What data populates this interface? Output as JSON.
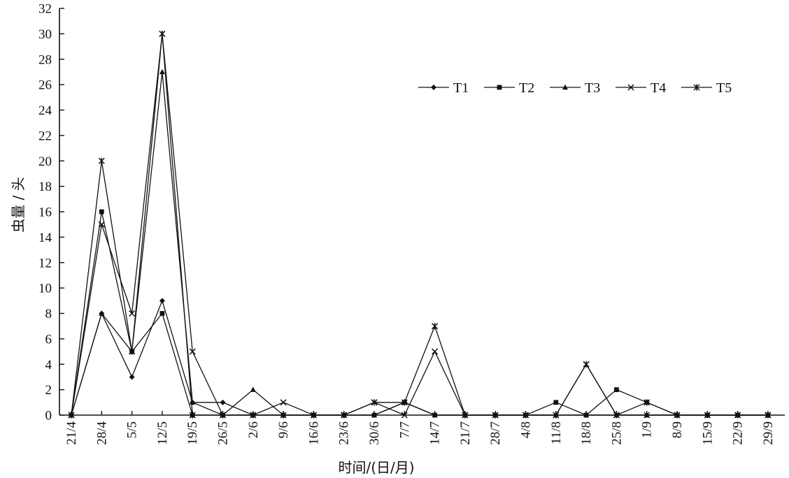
{
  "chart_data": {
    "type": "line",
    "title": "",
    "xlabel": "时间/(日/月)",
    "ylabel": "虫量 / 头",
    "ylim": [
      0,
      32
    ],
    "yticks": [
      0,
      2,
      4,
      6,
      8,
      10,
      12,
      14,
      16,
      18,
      20,
      22,
      24,
      26,
      28,
      30,
      32
    ],
    "grid": false,
    "legend_position": "top-right",
    "categories": [
      "21/4",
      "28/4",
      "5/5",
      "12/5",
      "19/5",
      "26/5",
      "2/6",
      "9/6",
      "16/6",
      "23/6",
      "30/6",
      "7/7",
      "14/7",
      "21/7",
      "28/7",
      "4/8",
      "11/8",
      "18/8",
      "25/8",
      "1/9",
      "8/9",
      "15/9",
      "22/9",
      "29/9"
    ],
    "series": [
      {
        "name": "T1",
        "marker": "diamond",
        "values": [
          0,
          8,
          3,
          9,
          1,
          1,
          0,
          0,
          0,
          0,
          0,
          1,
          0,
          0,
          0,
          0,
          0,
          0,
          0,
          0,
          0,
          0,
          0,
          0
        ]
      },
      {
        "name": "T2",
        "marker": "square",
        "values": [
          0,
          16,
          5,
          8,
          0,
          0,
          0,
          0,
          0,
          0,
          0,
          1,
          0,
          0,
          0,
          0,
          1,
          0,
          2,
          1,
          0,
          0,
          0,
          0
        ]
      },
      {
        "name": "T3",
        "marker": "triangle",
        "values": [
          0,
          8,
          5,
          27,
          1,
          0,
          2,
          0,
          0,
          0,
          0,
          1,
          0,
          0,
          0,
          0,
          0,
          0,
          0,
          0,
          0,
          0,
          0,
          0
        ]
      },
      {
        "name": "T4",
        "marker": "x",
        "values": [
          0,
          15,
          8,
          30,
          5,
          0,
          0,
          1,
          0,
          0,
          1,
          0,
          5,
          0,
          0,
          0,
          0,
          4,
          0,
          0,
          0,
          0,
          0,
          0
        ]
      },
      {
        "name": "T5",
        "marker": "star",
        "values": [
          0,
          20,
          5,
          30,
          0,
          0,
          0,
          0,
          0,
          0,
          1,
          1,
          7,
          0,
          0,
          0,
          0,
          4,
          0,
          1,
          0,
          0,
          0,
          0
        ]
      }
    ]
  }
}
